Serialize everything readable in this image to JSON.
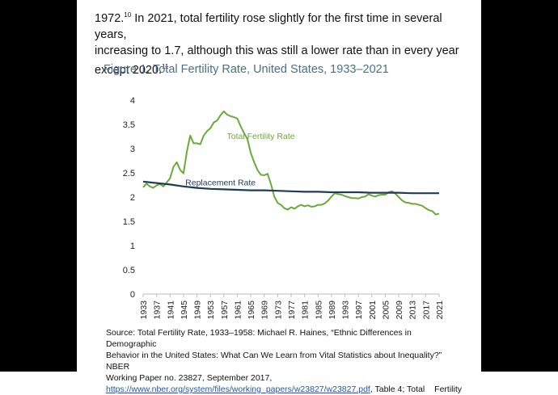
{
  "intro": {
    "year_text": "1972.",
    "footnote_a": "10",
    "line1_rest": " In 2021, total fertility rose slightly for the first time in several years,",
    "line2": "increasing to 1.7, although this was still a lower rate than in every year",
    "line3": "except 2020.",
    "footnote_b": "11"
  },
  "figure_title": "Figure 1. Total Fertility Rate, United States, 1933–2021",
  "chart_data": {
    "type": "line",
    "title": "Figure 1. Total Fertility Rate, United States, 1933–2021",
    "xlabel": "",
    "ylabel": "",
    "xlim": [
      1933,
      2021
    ],
    "ylim": [
      0,
      4
    ],
    "yticks": [
      0,
      0.5,
      1,
      1.5,
      2,
      2.5,
      3,
      3.5,
      4
    ],
    "ytick_labels": [
      "0",
      "0.5",
      "1",
      "1.5",
      "2",
      "2.5",
      "3",
      "3.5",
      "4"
    ],
    "xticks": [
      1933,
      1937,
      1941,
      1945,
      1949,
      1953,
      1957,
      1961,
      1965,
      1969,
      1973,
      1977,
      1981,
      1985,
      1989,
      1993,
      1997,
      2001,
      2005,
      2009,
      2013,
      2017,
      2021
    ],
    "xtick_labels": [
      "1933",
      "1937",
      "1941",
      "1945",
      "1949",
      "1953",
      "1957",
      "1961",
      "1965",
      "1969",
      "1973",
      "1977",
      "1981",
      "1985",
      "1989",
      "1993",
      "1997",
      "2001",
      "2005",
      "2009",
      "2013",
      "2017",
      "2021"
    ],
    "grid": false,
    "series": [
      {
        "name": "Total Fertility Rate",
        "color": "#6aaa3a",
        "x": [
          1933,
          1934,
          1935,
          1936,
          1937,
          1938,
          1939,
          1940,
          1941,
          1942,
          1943,
          1944,
          1945,
          1946,
          1947,
          1948,
          1949,
          1950,
          1951,
          1952,
          1953,
          1954,
          1955,
          1956,
          1957,
          1958,
          1959,
          1960,
          1961,
          1962,
          1963,
          1964,
          1965,
          1966,
          1967,
          1968,
          1969,
          1970,
          1971,
          1972,
          1973,
          1974,
          1975,
          1976,
          1977,
          1978,
          1979,
          1980,
          1981,
          1982,
          1983,
          1984,
          1985,
          1986,
          1987,
          1988,
          1989,
          1990,
          1991,
          1992,
          1993,
          1994,
          1995,
          1996,
          1997,
          1998,
          1999,
          2000,
          2001,
          2002,
          2003,
          2004,
          2005,
          2006,
          2007,
          2008,
          2009,
          2010,
          2011,
          2012,
          2013,
          2014,
          2015,
          2016,
          2017,
          2018,
          2019,
          2020,
          2021
        ],
        "values": [
          2.2,
          2.28,
          2.22,
          2.19,
          2.24,
          2.27,
          2.22,
          2.3,
          2.39,
          2.62,
          2.72,
          2.56,
          2.49,
          2.94,
          3.27,
          3.11,
          3.11,
          3.09,
          3.27,
          3.36,
          3.42,
          3.54,
          3.58,
          3.69,
          3.77,
          3.7,
          3.67,
          3.65,
          3.62,
          3.46,
          3.32,
          3.2,
          2.91,
          2.72,
          2.56,
          2.46,
          2.45,
          2.48,
          2.27,
          2.01,
          1.88,
          1.84,
          1.77,
          1.74,
          1.79,
          1.76,
          1.81,
          1.84,
          1.81,
          1.83,
          1.8,
          1.81,
          1.84,
          1.84,
          1.87,
          1.93,
          2.01,
          2.08,
          2.06,
          2.05,
          2.02,
          2.0,
          1.98,
          1.98,
          1.97,
          2.0,
          2.01,
          2.06,
          2.03,
          2.01,
          2.04,
          2.05,
          2.05,
          2.1,
          2.12,
          2.07,
          2.0,
          1.93,
          1.89,
          1.88,
          1.86,
          1.86,
          1.84,
          1.82,
          1.77,
          1.73,
          1.71,
          1.64,
          1.66
        ]
      },
      {
        "name": "Replacement Rate",
        "color": "#1f3b57",
        "x": [
          1933,
          1937,
          1941,
          1945,
          1949,
          1953,
          1957,
          1961,
          1965,
          1969,
          1973,
          1977,
          1981,
          1985,
          1989,
          1993,
          1997,
          2001,
          2005,
          2009,
          2013,
          2017,
          2021
        ],
        "values": [
          2.32,
          2.29,
          2.26,
          2.22,
          2.19,
          2.17,
          2.16,
          2.15,
          2.14,
          2.14,
          2.13,
          2.12,
          2.11,
          2.11,
          2.1,
          2.1,
          2.1,
          2.09,
          2.09,
          2.09,
          2.08,
          2.08,
          2.08
        ]
      }
    ],
    "annotations": [
      {
        "text": "Total Fertility Rate",
        "series": 0
      },
      {
        "text": "Replacement Rate",
        "series": 1
      }
    ]
  },
  "source": {
    "line1": "Source: Total Fertility Rate, 1933–1958: Michael R. Haines, “Ethnic Differences in Demographic",
    "line2": "Behavior in the United States: What Can We Learn from Vital Statistics about Inequality?” NBER",
    "line3": "Working Paper no. 23827, September 2017,",
    "url": "https://www.nber.org/system/files/working_papers/w23827/w23827.pdf",
    "line4_rest_a": ", Table 4; Total",
    "line4_rest_b": "Fertility"
  }
}
